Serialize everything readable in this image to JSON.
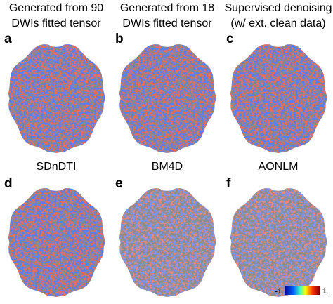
{
  "panels": [
    {
      "label": "a",
      "title": [
        "Generated from 90",
        "DWIs fitted tensor"
      ],
      "strength": "strong"
    },
    {
      "label": "b",
      "title": [
        "Generated from 18",
        "DWIs fitted tensor"
      ],
      "strength": "strong"
    },
    {
      "label": "c",
      "title": [
        "Supervised denoising",
        "(w/ ext. clean data)"
      ],
      "strength": "strong"
    },
    {
      "label": "d",
      "title": [
        "SDnDTI"
      ],
      "strength": "strong"
    },
    {
      "label": "e",
      "title": [
        "BM4D"
      ],
      "strength": "weak"
    },
    {
      "label": "f",
      "title": [
        "AONLM"
      ],
      "strength": "weak"
    }
  ],
  "colorbar": {
    "min": -1,
    "max": 1
  }
}
